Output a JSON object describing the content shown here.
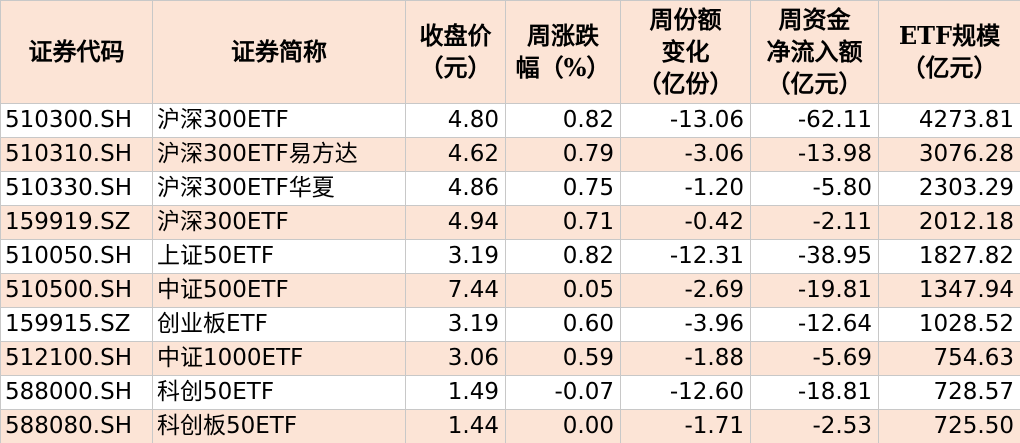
{
  "table": {
    "header": [
      [
        "证券代码"
      ],
      [
        "证券简称"
      ],
      [
        "收盘价",
        "（元）"
      ],
      [
        "周涨跌",
        "幅（%）"
      ],
      [
        "周份额",
        "变化",
        "（亿份）"
      ],
      [
        "周资金",
        "净流入额",
        "（亿元）"
      ],
      [
        "ETF规模",
        "（亿元）"
      ]
    ],
    "rows": [
      [
        "510300.SH",
        "沪深300ETF",
        "4.80",
        "0.82",
        "-13.06",
        "-62.11",
        "4273.81"
      ],
      [
        "510310.SH",
        "沪深300ETF易方达",
        "4.62",
        "0.79",
        "-3.06",
        "-13.98",
        "3076.28"
      ],
      [
        "510330.SH",
        "沪深300ETF华夏",
        "4.86",
        "0.75",
        "-1.20",
        "-5.80",
        "2303.29"
      ],
      [
        "159919.SZ",
        "沪深300ETF",
        "4.94",
        "0.71",
        "-0.42",
        "-2.11",
        "2012.18"
      ],
      [
        "510050.SH",
        "上证50ETF",
        "3.19",
        "0.82",
        "-12.31",
        "-38.95",
        "1827.82"
      ],
      [
        "510500.SH",
        "中证500ETF",
        "7.44",
        "0.05",
        "-2.69",
        "-19.81",
        "1347.94"
      ],
      [
        "159915.SZ",
        "创业板ETF",
        "3.19",
        "0.60",
        "-3.96",
        "-12.64",
        "1028.52"
      ],
      [
        "512100.SH",
        "中证1000ETF",
        "3.06",
        "0.59",
        "-1.88",
        "-5.69",
        "754.63"
      ],
      [
        "588000.SH",
        "科创50ETF",
        "1.49",
        "-0.07",
        "-12.60",
        "-18.81",
        "728.57"
      ],
      [
        "588080.SH",
        "科创板50ETF",
        "1.44",
        "0.00",
        "-1.71",
        "-2.53",
        "725.50"
      ]
    ]
  }
}
